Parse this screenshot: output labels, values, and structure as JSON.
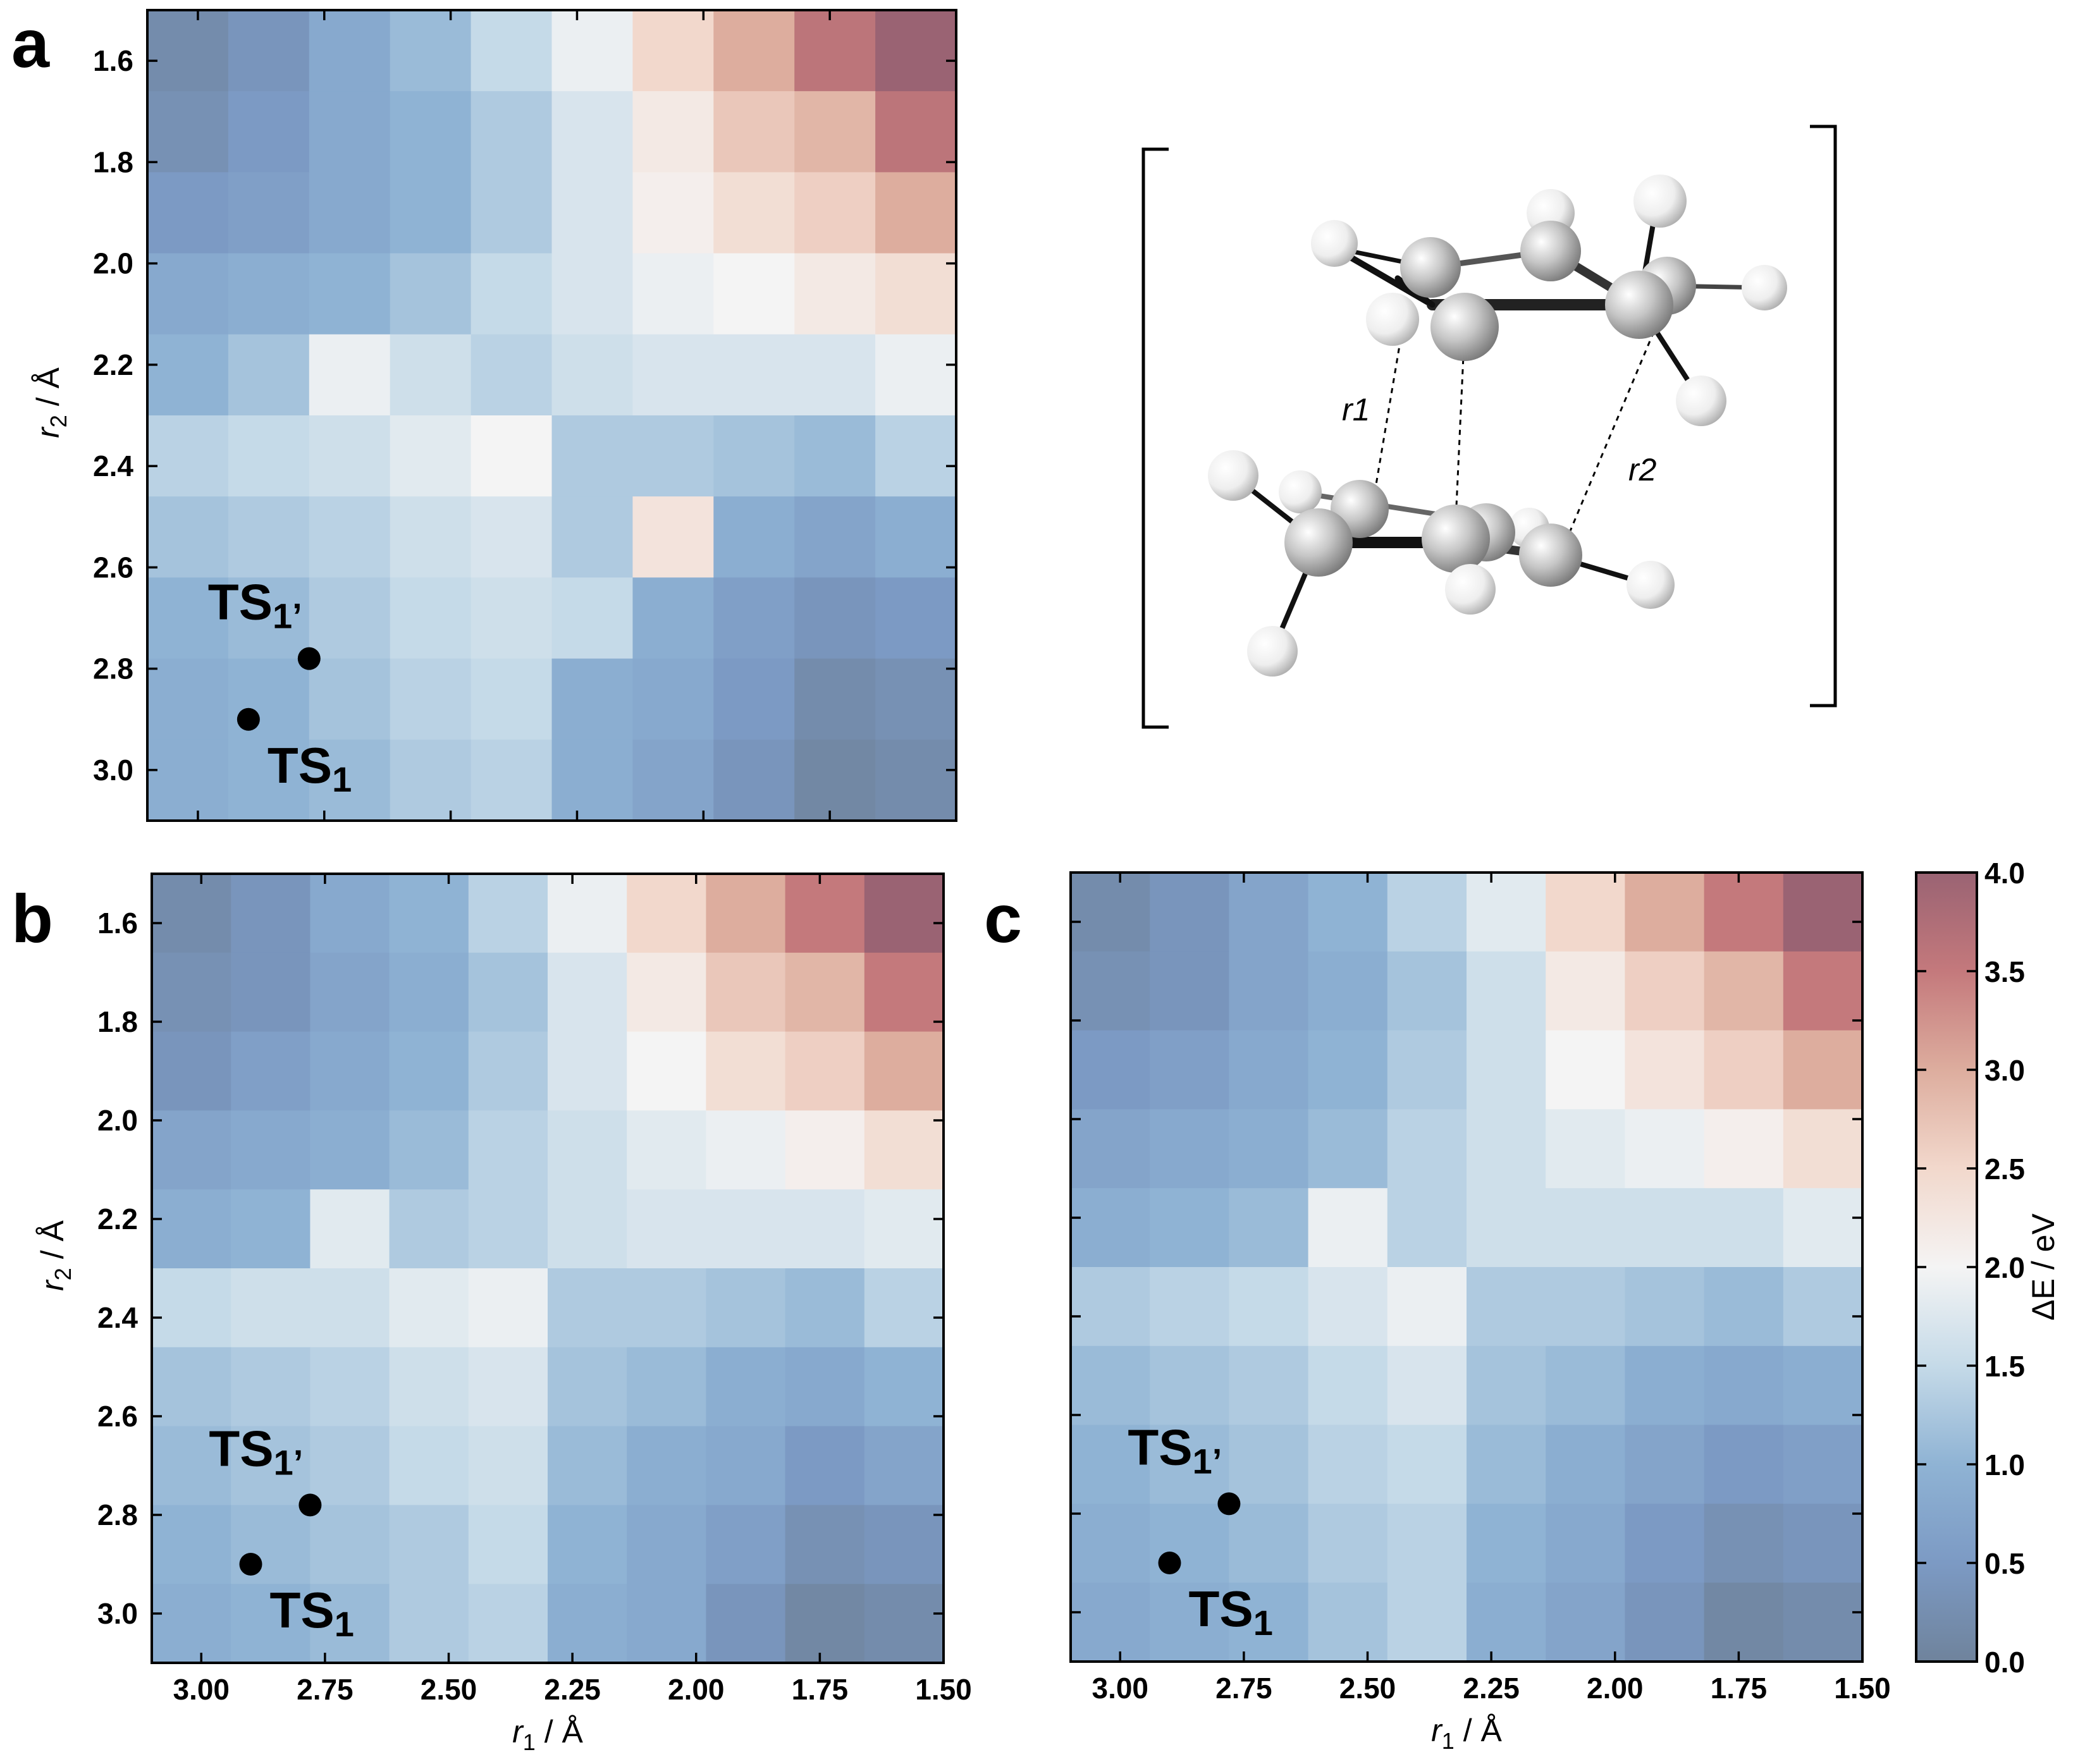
{
  "chart_data": [
    {
      "type": "heatmap",
      "panel": "a",
      "xlabel": "",
      "ylabel": "r2 / Å",
      "x_ticks": [
        "3.00",
        "2.75",
        "2.50",
        "2.25",
        "2.00",
        "1.75",
        "1.50"
      ],
      "y_ticks": [
        "1.6",
        "1.8",
        "2.0",
        "2.2",
        "2.4",
        "2.6",
        "2.8",
        "3.0"
      ],
      "x_range": [
        3.1,
        1.5
      ],
      "y_range": [
        1.5,
        3.1
      ],
      "r1_centers": [
        3.0,
        2.8,
        2.6,
        2.4,
        2.2,
        2.0,
        1.8,
        1.6,
        1.4,
        1.2
      ],
      "r2_centers": [
        1.6,
        1.8,
        2.0,
        2.2,
        2.4,
        2.6,
        2.8,
        3.0,
        3.2,
        3.4
      ],
      "values": [
        [
          0.2,
          0.4,
          0.8,
          1.1,
          1.5,
          1.9,
          2.5,
          3.0,
          3.6,
          4.0
        ],
        [
          0.3,
          0.5,
          0.8,
          1.0,
          1.3,
          1.7,
          2.2,
          2.7,
          2.9,
          3.6
        ],
        [
          0.5,
          0.6,
          0.8,
          1.0,
          1.3,
          1.7,
          2.1,
          2.4,
          2.6,
          3.0
        ],
        [
          0.8,
          0.9,
          1.0,
          1.2,
          1.5,
          1.7,
          1.9,
          2.0,
          2.2,
          2.4
        ],
        [
          1.0,
          1.2,
          1.9,
          1.6,
          1.4,
          1.6,
          1.7,
          1.7,
          1.7,
          1.9
        ],
        [
          1.4,
          1.5,
          1.6,
          1.8,
          2.0,
          1.3,
          1.3,
          1.2,
          1.1,
          1.4
        ],
        [
          1.2,
          1.3,
          1.4,
          1.6,
          1.7,
          1.3,
          2.3,
          0.9,
          0.7,
          0.9
        ],
        [
          1.0,
          1.1,
          1.3,
          1.5,
          1.6,
          1.5,
          0.9,
          0.6,
          0.4,
          0.5
        ],
        [
          0.9,
          1.0,
          1.2,
          1.4,
          1.5,
          0.9,
          0.8,
          0.5,
          0.2,
          0.3
        ],
        [
          0.9,
          1.0,
          1.1,
          1.3,
          1.4,
          0.9,
          0.7,
          0.4,
          0.1,
          0.2
        ]
      ],
      "points": [
        {
          "label": "TS1'",
          "r1": 2.78,
          "r2": 2.78
        },
        {
          "label": "TS1",
          "r1": 2.9,
          "r2": 2.9
        }
      ],
      "colormap": {
        "min": 0.0,
        "max": 4.0,
        "low": "#6f839c",
        "mid": "#f4f4f4",
        "high": "#9a6373"
      }
    },
    {
      "type": "heatmap",
      "panel": "b",
      "xlabel": "r1 / Å",
      "ylabel": "r2 / Å",
      "x_ticks": [
        "3.00",
        "2.75",
        "2.50",
        "2.25",
        "2.00",
        "1.75",
        "1.50"
      ],
      "y_ticks": [
        "1.6",
        "1.8",
        "2.0",
        "2.2",
        "2.4",
        "2.6",
        "2.8",
        "3.0"
      ],
      "x_range": [
        3.1,
        1.5
      ],
      "y_range": [
        1.5,
        3.1
      ],
      "r1_centers": [
        3.0,
        2.8,
        2.6,
        2.4,
        2.2,
        2.0,
        1.8,
        1.6,
        1.4,
        1.2
      ],
      "r2_centers": [
        1.6,
        1.8,
        2.0,
        2.2,
        2.4,
        2.6,
        2.8,
        3.0,
        3.2,
        3.4
      ],
      "values": [
        [
          0.2,
          0.4,
          0.8,
          1.0,
          1.4,
          1.9,
          2.5,
          3.0,
          3.5,
          4.0
        ],
        [
          0.3,
          0.4,
          0.7,
          0.9,
          1.2,
          1.7,
          2.2,
          2.7,
          2.9,
          3.5
        ],
        [
          0.4,
          0.6,
          0.8,
          1.0,
          1.3,
          1.7,
          2.0,
          2.4,
          2.6,
          3.0
        ],
        [
          0.7,
          0.8,
          0.9,
          1.1,
          1.4,
          1.6,
          1.8,
          1.9,
          2.1,
          2.4
        ],
        [
          0.9,
          1.0,
          1.8,
          1.3,
          1.4,
          1.6,
          1.7,
          1.7,
          1.7,
          1.8
        ],
        [
          1.5,
          1.6,
          1.6,
          1.8,
          1.9,
          1.3,
          1.3,
          1.2,
          1.1,
          1.4
        ],
        [
          1.2,
          1.3,
          1.4,
          1.6,
          1.7,
          1.2,
          1.1,
          0.9,
          0.8,
          1.0
        ],
        [
          1.1,
          1.2,
          1.3,
          1.5,
          1.6,
          1.1,
          0.9,
          0.8,
          0.5,
          0.7
        ],
        [
          1.0,
          1.1,
          1.2,
          1.3,
          1.5,
          1.0,
          0.8,
          0.6,
          0.3,
          0.4
        ],
        [
          0.9,
          1.0,
          1.1,
          1.3,
          1.4,
          0.9,
          0.8,
          0.4,
          0.1,
          0.2
        ]
      ],
      "points": [
        {
          "label": "TS1'",
          "r1": 2.78,
          "r2": 2.78
        },
        {
          "label": "TS1",
          "r1": 2.9,
          "r2": 2.9
        }
      ],
      "colormap": {
        "min": 0.0,
        "max": 4.0,
        "low": "#6f839c",
        "mid": "#f4f4f4",
        "high": "#9a6373"
      }
    },
    {
      "type": "heatmap",
      "panel": "c",
      "xlabel": "r1 / Å",
      "ylabel": "",
      "x_ticks": [
        "3.00",
        "2.75",
        "2.50",
        "2.25",
        "2.00",
        "1.75",
        "1.50"
      ],
      "y_ticks": [],
      "x_range": [
        3.1,
        1.5
      ],
      "y_range": [
        1.5,
        3.1
      ],
      "r1_centers": [
        3.0,
        2.8,
        2.6,
        2.4,
        2.2,
        2.0,
        1.8,
        1.6,
        1.4,
        1.2
      ],
      "r2_centers": [
        1.6,
        1.8,
        2.0,
        2.2,
        2.4,
        2.6,
        2.8,
        3.0,
        3.2,
        3.4
      ],
      "values": [
        [
          0.2,
          0.4,
          0.7,
          1.0,
          1.4,
          1.8,
          2.5,
          3.0,
          3.5,
          4.0
        ],
        [
          0.3,
          0.4,
          0.7,
          0.9,
          1.2,
          1.6,
          2.2,
          2.6,
          2.9,
          3.5
        ],
        [
          0.5,
          0.6,
          0.8,
          1.0,
          1.3,
          1.6,
          2.0,
          2.3,
          2.6,
          3.0
        ],
        [
          0.7,
          0.8,
          0.9,
          1.1,
          1.4,
          1.6,
          1.8,
          1.9,
          2.1,
          2.4
        ],
        [
          0.9,
          1.0,
          1.1,
          1.9,
          1.4,
          1.6,
          1.6,
          1.6,
          1.6,
          1.8
        ],
        [
          1.3,
          1.4,
          1.5,
          1.7,
          1.9,
          1.3,
          1.3,
          1.2,
          1.1,
          1.3
        ],
        [
          1.1,
          1.2,
          1.3,
          1.5,
          1.7,
          1.2,
          1.1,
          0.9,
          0.8,
          0.9
        ],
        [
          1.0,
          1.1,
          1.2,
          1.4,
          1.5,
          1.1,
          0.9,
          0.7,
          0.5,
          0.6
        ],
        [
          0.9,
          1.0,
          1.1,
          1.3,
          1.4,
          1.0,
          0.8,
          0.5,
          0.3,
          0.4
        ],
        [
          0.8,
          0.9,
          1.0,
          1.2,
          1.4,
          0.9,
          0.7,
          0.4,
          0.1,
          0.2
        ]
      ],
      "points": [
        {
          "label": "TS1'",
          "r1": 2.78,
          "r2": 2.78
        },
        {
          "label": "TS1",
          "r1": 2.9,
          "r2": 2.9
        }
      ],
      "colormap": {
        "min": 0.0,
        "max": 4.0,
        "low": "#6f839c",
        "mid": "#f4f4f4",
        "high": "#9a6373"
      }
    }
  ],
  "colorbar": {
    "label": "ΔE / eV",
    "ticks": [
      "0.0",
      "0.5",
      "1.0",
      "1.5",
      "2.0",
      "2.5",
      "3.0",
      "3.5",
      "4.0"
    ],
    "range": [
      0.0,
      4.0
    ]
  },
  "molecule": {
    "labels": [
      "r1",
      "r2"
    ],
    "atom_colors": {
      "carbon": "#b8b8b8",
      "hydrogen": "#f0f0f0"
    }
  },
  "panel_letters": [
    "a",
    "b",
    "c"
  ],
  "points_text": {
    "ts_main": "TS",
    "ts_sub": "1",
    "ts_prime_sub": "1’"
  }
}
